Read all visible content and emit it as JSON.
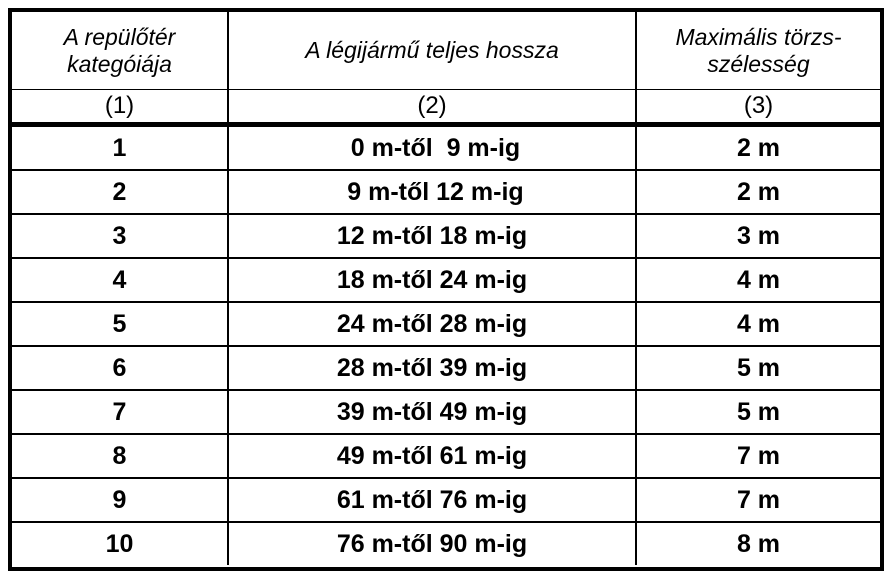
{
  "header": {
    "col1": "A repülőtér kategóiája",
    "col1_line1": "A repülőtér",
    "col1_line2": "kategóiája",
    "col2": "A légijármű teljes hossza",
    "col3_line1": "Maximális törzs-",
    "col3_line2": "szélesség"
  },
  "column_numbers": [
    "(1)",
    "(2)",
    "(3)"
  ],
  "rows": [
    {
      "category": "1",
      "length": " 0 m-től  9 m-ig",
      "width": "2 m"
    },
    {
      "category": "2",
      "length": " 9 m-től 12 m-ig",
      "width": "2 m"
    },
    {
      "category": "3",
      "length": "12 m-től 18 m-ig",
      "width": "3 m"
    },
    {
      "category": "4",
      "length": "18 m-től 24 m-ig",
      "width": "4 m"
    },
    {
      "category": "5",
      "length": "24 m-től 28 m-ig",
      "width": "4 m"
    },
    {
      "category": "6",
      "length": "28 m-től 39 m-ig",
      "width": "5 m"
    },
    {
      "category": "7",
      "length": "39 m-től 49 m-ig",
      "width": "5 m"
    },
    {
      "category": "8",
      "length": "49 m-től 61 m-ig",
      "width": "7 m"
    },
    {
      "category": "9",
      "length": "61 m-től 76 m-ig",
      "width": "7 m"
    },
    {
      "category": "10",
      "length": "76 m-től 90 m-ig",
      "width": "8 m"
    }
  ]
}
